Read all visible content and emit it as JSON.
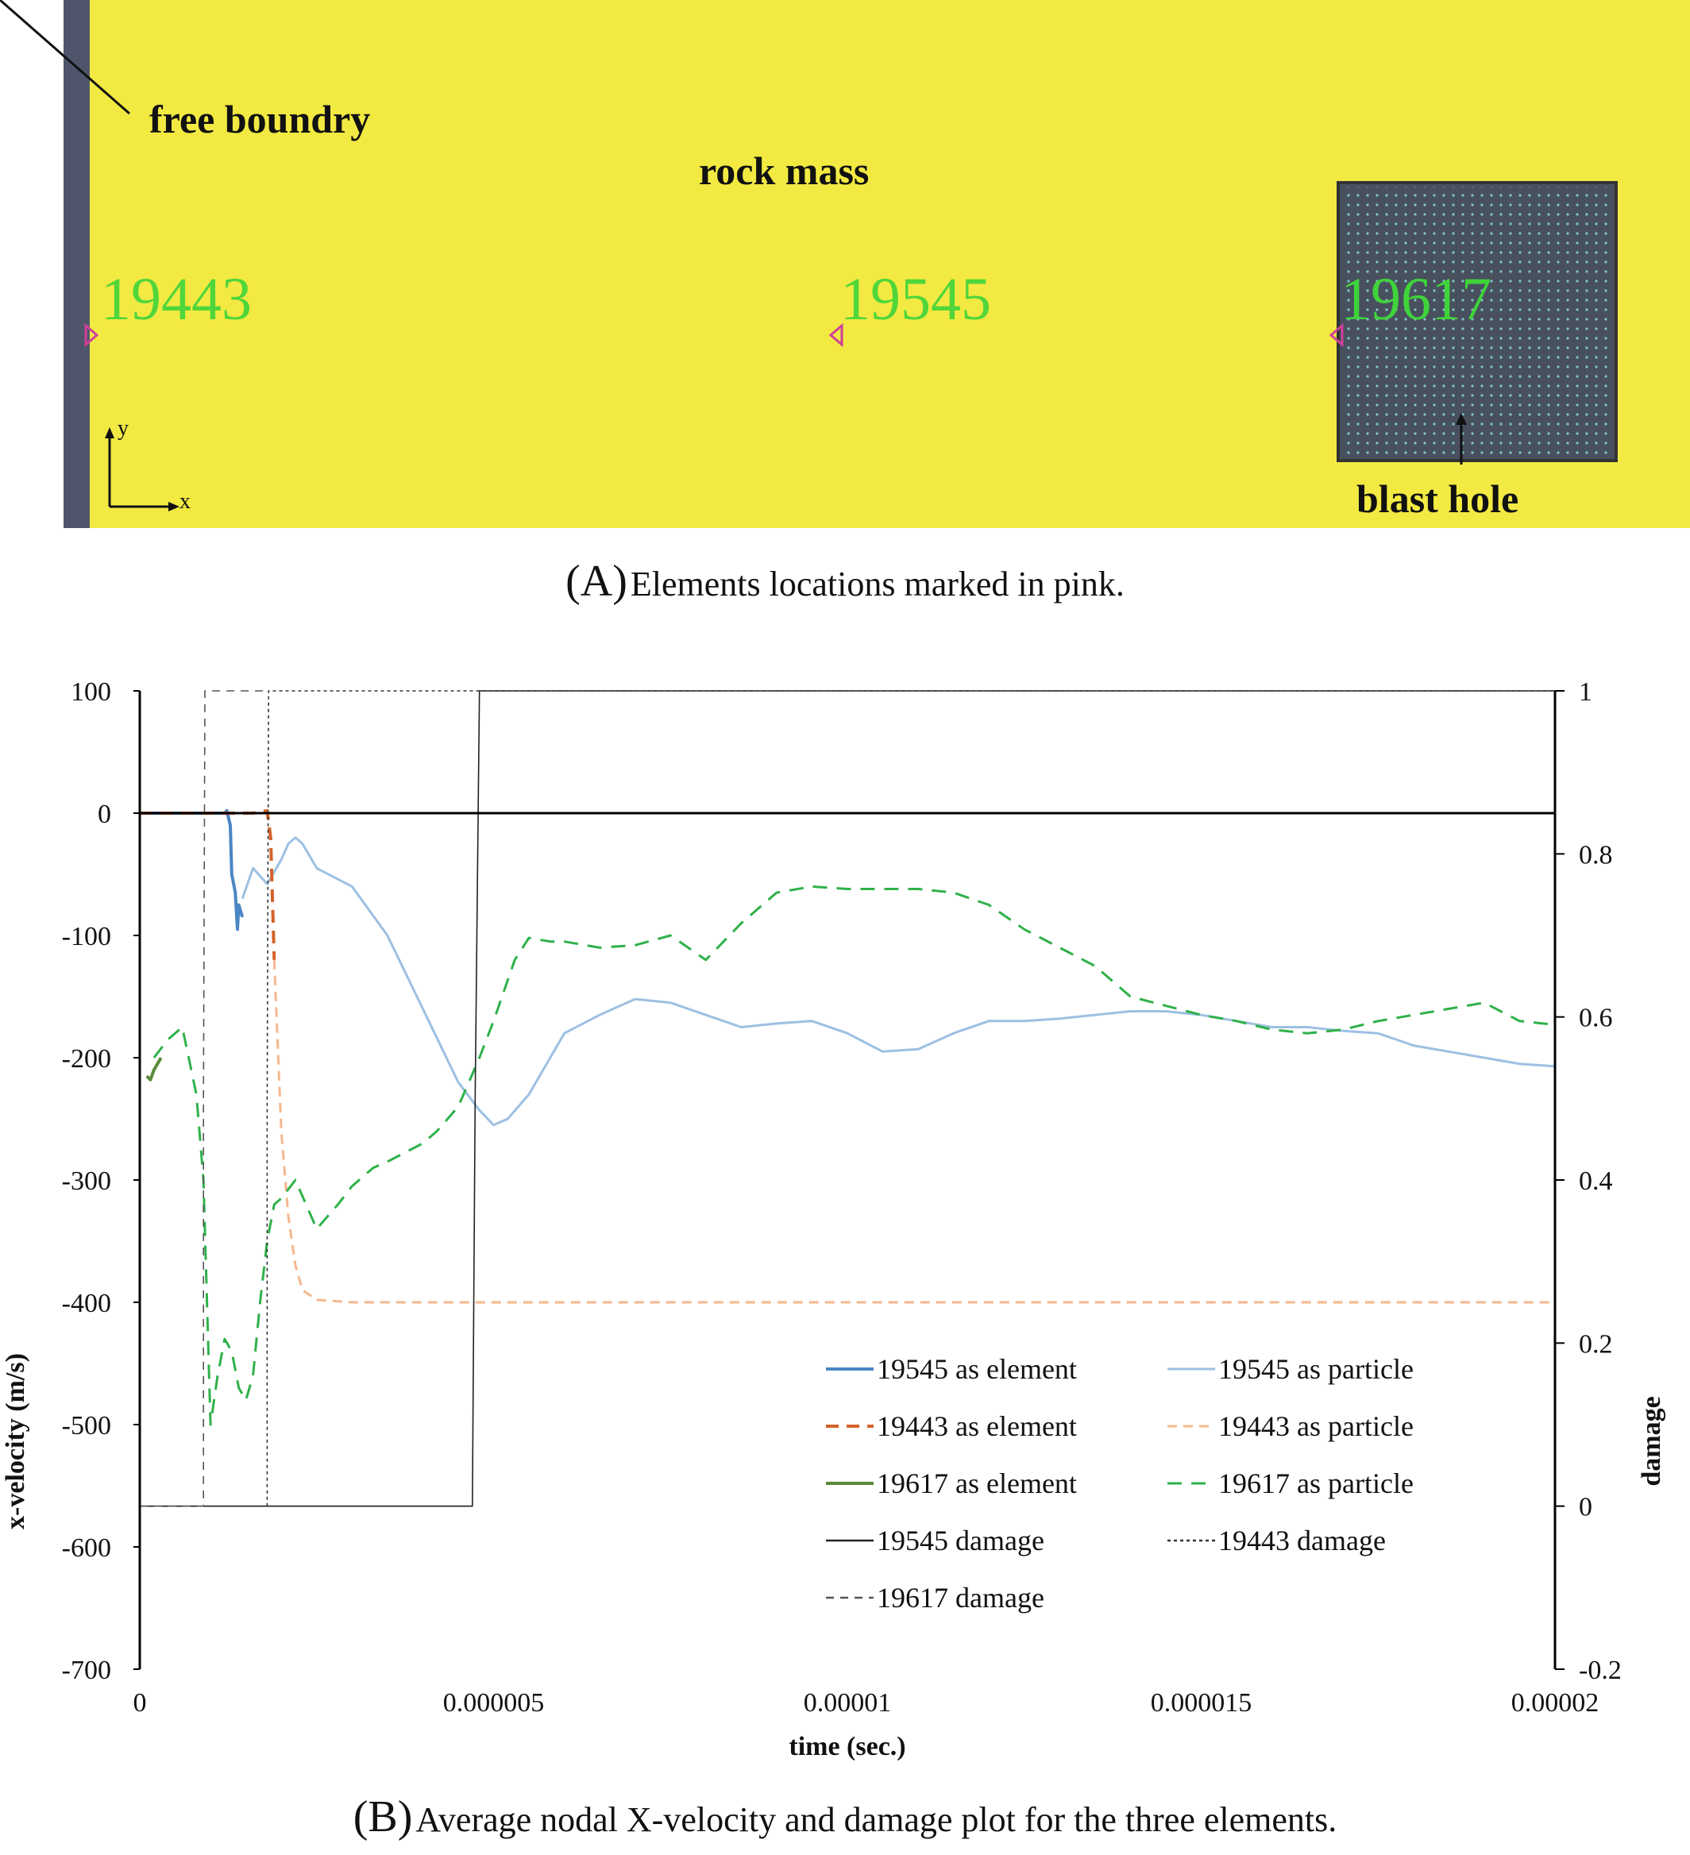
{
  "panel_a": {
    "labels": {
      "free_boundary": "free boundry",
      "rock_mass": "rock mass",
      "blast_hole": "blast hole",
      "axis_y": "y",
      "axis_x": "x"
    },
    "elements": [
      "19443",
      "19545",
      "19617"
    ],
    "colors": {
      "rock": "#f2ea42",
      "boundary": "#4f566b",
      "hole": "#48505e",
      "marker": "#d0409a",
      "label": "#3fd43a"
    }
  },
  "captions": {
    "a_letter": "(A)",
    "a_text": "Elements locations marked in pink.",
    "b_letter": "(B)",
    "b_text": "Average nodal X-velocity and damage plot for the three elements."
  },
  "chart_data": {
    "type": "line",
    "xlabel": "time (sec.)",
    "ylabel": "x-velocity (m/s)",
    "y2label": "damage",
    "xlim": [
      0,
      2e-05
    ],
    "ylim": [
      -700,
      100
    ],
    "y2lim": [
      -0.2,
      1
    ],
    "xticks": [
      "0",
      "0.000005",
      "0.00001",
      "0.000015",
      "0.00002"
    ],
    "yticks": [
      "100",
      "0",
      "-100",
      "-200",
      "-300",
      "-400",
      "-500",
      "-600",
      "-700"
    ],
    "y2ticks": [
      "1",
      "0.8",
      "0.6",
      "0.4",
      "0.2",
      "0",
      "-0.2"
    ],
    "legend_position": "lower-right",
    "series": [
      {
        "name": "19545 as element",
        "axis": "left",
        "color": "#4a86c4",
        "dash": "solid",
        "width": 4,
        "x": [
          0,
          1.2e-06,
          1.23e-06,
          1.28e-06,
          1.3e-06,
          1.35e-06,
          1.38e-06,
          1.4e-06,
          1.45e-06
        ],
        "y": [
          0,
          0,
          2,
          -10,
          -50,
          -65,
          -95,
          -75,
          -85
        ]
      },
      {
        "name": "19545 as particle",
        "axis": "left",
        "color": "#9cc0e2",
        "dash": "solid",
        "width": 3,
        "x": [
          1.45e-06,
          1.6e-06,
          1.8e-06,
          2e-06,
          2.1e-06,
          2.2e-06,
          2.3e-06,
          2.5e-06,
          3e-06,
          3.5e-06,
          4e-06,
          4.5e-06,
          4.8e-06,
          5e-06,
          5.2e-06,
          5.5e-06,
          5.8e-06,
          6e-06,
          6.5e-06,
          7e-06,
          7.5e-06,
          8e-06,
          8.5e-06,
          9e-06,
          9.5e-06,
          1e-05,
          1.05e-05,
          1.1e-05,
          1.15e-05,
          1.2e-05,
          1.25e-05,
          1.3e-05,
          1.35e-05,
          1.4e-05,
          1.45e-05,
          1.5e-05,
          1.55e-05,
          1.6e-05,
          1.65e-05,
          1.7e-05,
          1.75e-05,
          1.8e-05,
          1.85e-05,
          1.9e-05,
          1.95e-05,
          2e-05
        ],
        "y": [
          -70,
          -45,
          -58,
          -38,
          -25,
          -20,
          -25,
          -45,
          -60,
          -100,
          -160,
          -220,
          -243,
          -255,
          -250,
          -230,
          -200,
          -180,
          -165,
          -152,
          -155,
          -165,
          -175,
          -172,
          -170,
          -180,
          -195,
          -193,
          -180,
          -170,
          -170,
          -168,
          -165,
          -162,
          -162,
          -165,
          -170,
          -175,
          -175,
          -178,
          -180,
          -190,
          -195,
          -200,
          -205,
          -207
        ]
      },
      {
        "name": "19443 as element",
        "axis": "left",
        "color": "#d4622a",
        "dash": "16,10",
        "width": 4,
        "x": [
          0,
          1.6e-06,
          1.8e-06,
          1.85e-06,
          1.9e-06
        ],
        "y": [
          0,
          0,
          2,
          -20,
          -120
        ]
      },
      {
        "name": "19443 as particle",
        "axis": "left",
        "color": "#f5b78e",
        "dash": "12,8",
        "width": 3,
        "x": [
          1.9e-06,
          2e-06,
          2.1e-06,
          2.2e-06,
          2.3e-06,
          2.5e-06,
          3e-06,
          1e-05,
          2e-05
        ],
        "y": [
          -120,
          -260,
          -330,
          -370,
          -390,
          -398,
          -400,
          -400,
          -400
        ]
      },
      {
        "name": "19617 as element",
        "axis": "left",
        "color": "#5a8a3a",
        "dash": "solid",
        "width": 4,
        "x": [
          1e-07,
          1.5e-07,
          2e-07,
          2.5e-07,
          3e-07
        ],
        "y": [
          -215,
          -218,
          -210,
          -205,
          -200
        ]
      },
      {
        "name": "19617 as particle",
        "axis": "left",
        "color": "#2fb14a",
        "dash": "18,12",
        "width": 3,
        "x": [
          2e-07,
          4e-07,
          6e-07,
          8e-07,
          9e-07,
          1e-06,
          1.1e-06,
          1.2e-06,
          1.3e-06,
          1.4e-06,
          1.5e-06,
          1.6e-06,
          1.7e-06,
          1.8e-06,
          1.9e-06,
          2e-06,
          2.2e-06,
          2.5e-06,
          2.8e-06,
          3e-06,
          3.3e-06,
          3.5e-06,
          4e-06,
          4.2e-06,
          4.5e-06,
          4.8e-06,
          5e-06,
          5.3e-06,
          5.5e-06,
          5.8e-06,
          6e-06,
          6.5e-06,
          7e-06,
          7.5e-06,
          8e-06,
          8.5e-06,
          9e-06,
          9.5e-06,
          1e-05,
          1.1e-05,
          1.15e-05,
          1.2e-05,
          1.25e-05,
          1.3e-05,
          1.35e-05,
          1.4e-05,
          1.5e-05,
          1.55e-05,
          1.6e-05,
          1.65e-05,
          1.7e-05,
          1.75e-05,
          1.8e-05,
          1.85e-05,
          1.9e-05,
          1.95e-05,
          2e-05
        ],
        "y": [
          -200,
          -185,
          -175,
          -230,
          -300,
          -500,
          -460,
          -430,
          -440,
          -470,
          -480,
          -460,
          -400,
          -350,
          -320,
          -315,
          -300,
          -340,
          -320,
          -305,
          -290,
          -285,
          -270,
          -260,
          -240,
          -200,
          -170,
          -120,
          -102,
          -105,
          -105,
          -110,
          -108,
          -100,
          -120,
          -90,
          -65,
          -60,
          -62,
          -62,
          -65,
          -75,
          -95,
          -110,
          -125,
          -150,
          -165,
          -170,
          -177,
          -180,
          -177,
          -170,
          -165,
          -160,
          -155,
          -170,
          -173
        ]
      },
      {
        "name": "19545 damage",
        "axis": "right",
        "color": "#222222",
        "dash": "solid",
        "width": 1.6,
        "x": [
          0,
          4.7e-06,
          4.74e-06,
          4.8e-06,
          2e-05
        ],
        "y": [
          0,
          0,
          0.5,
          1,
          1
        ]
      },
      {
        "name": "19443 damage",
        "axis": "right",
        "color": "#333333",
        "dash": "4,4",
        "width": 1.6,
        "x": [
          1.8e-06,
          1.8e-06,
          1.82e-06,
          2e-05
        ],
        "y": [
          0,
          0.5,
          1,
          1
        ]
      },
      {
        "name": "19617 damage",
        "axis": "right",
        "color": "#555555",
        "dash": "10,8",
        "width": 1.6,
        "x": [
          0,
          9e-07,
          9e-07,
          9.2e-07,
          1.8e-06
        ],
        "y": [
          0,
          0,
          0.5,
          1,
          1
        ]
      }
    ]
  }
}
